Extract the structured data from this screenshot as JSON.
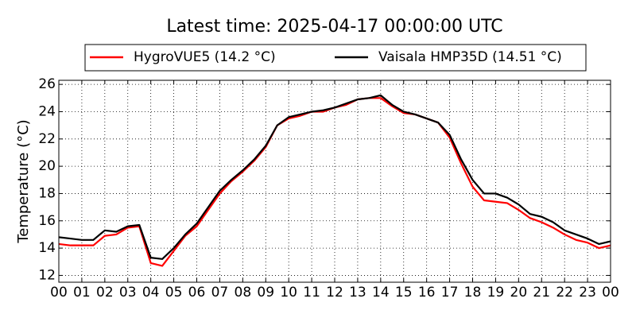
{
  "chart_data": {
    "type": "line",
    "title": "Latest time: 2025-04-17 00:00:00 UTC",
    "y_label": "Temperature (°C)",
    "x": [
      0,
      0.5,
      1,
      1.5,
      2,
      2.5,
      3,
      3.5,
      4,
      4.5,
      5,
      5.5,
      6,
      6.5,
      7,
      7.5,
      8,
      8.5,
      9,
      9.5,
      10,
      10.5,
      11,
      11.5,
      12,
      12.5,
      13,
      13.5,
      14,
      14.5,
      15,
      15.5,
      16,
      16.5,
      17,
      17.5,
      18,
      18.5,
      19,
      19.5,
      20,
      20.5,
      21,
      21.5,
      22,
      22.5,
      23,
      23.5,
      24
    ],
    "series": [
      {
        "name": "HygroVUE5 (14.2 °C)",
        "color": "#ff0000",
        "values": [
          14.3,
          14.2,
          14.2,
          14.2,
          14.9,
          15.0,
          15.5,
          15.6,
          12.9,
          12.7,
          13.8,
          14.9,
          15.6,
          16.8,
          18.0,
          18.9,
          19.6,
          20.4,
          21.4,
          23.0,
          23.5,
          23.7,
          24.0,
          24.0,
          24.3,
          24.5,
          24.9,
          25.0,
          25.0,
          24.4,
          23.9,
          23.8,
          23.5,
          23.2,
          22.1,
          20.2,
          18.5,
          17.5,
          17.4,
          17.3,
          16.8,
          16.2,
          15.9,
          15.5,
          15.0,
          14.6,
          14.4,
          14.0,
          14.2
        ]
      },
      {
        "name": "Vaisala HMP35D (14.51 °C)",
        "color": "#000000",
        "values": [
          14.8,
          14.7,
          14.6,
          14.6,
          15.3,
          15.2,
          15.6,
          15.7,
          13.3,
          13.2,
          14.0,
          15.0,
          15.8,
          17.0,
          18.2,
          19.0,
          19.7,
          20.5,
          21.5,
          23.0,
          23.6,
          23.8,
          24.0,
          24.1,
          24.3,
          24.6,
          24.9,
          25.0,
          25.2,
          24.5,
          24.0,
          23.8,
          23.5,
          23.2,
          22.3,
          20.5,
          19.0,
          18.0,
          18.0,
          17.7,
          17.2,
          16.5,
          16.3,
          15.9,
          15.3,
          15.0,
          14.7,
          14.3,
          14.5
        ]
      }
    ],
    "xlim": [
      0,
      24
    ],
    "xticks": [
      {
        "value": 0,
        "label": "00"
      },
      {
        "value": 1,
        "label": "01"
      },
      {
        "value": 2,
        "label": "02"
      },
      {
        "value": 3,
        "label": "03"
      },
      {
        "value": 4,
        "label": "04"
      },
      {
        "value": 5,
        "label": "05"
      },
      {
        "value": 6,
        "label": "06"
      },
      {
        "value": 7,
        "label": "07"
      },
      {
        "value": 8,
        "label": "08"
      },
      {
        "value": 9,
        "label": "09"
      },
      {
        "value": 10,
        "label": "10"
      },
      {
        "value": 11,
        "label": "11"
      },
      {
        "value": 12,
        "label": "12"
      },
      {
        "value": 13,
        "label": "13"
      },
      {
        "value": 14,
        "label": "14"
      },
      {
        "value": 15,
        "label": "15"
      },
      {
        "value": 16,
        "label": "16"
      },
      {
        "value": 17,
        "label": "17"
      },
      {
        "value": 18,
        "label": "18"
      },
      {
        "value": 19,
        "label": "19"
      },
      {
        "value": 20,
        "label": "20"
      },
      {
        "value": 21,
        "label": "21"
      },
      {
        "value": 22,
        "label": "22"
      },
      {
        "value": 23,
        "label": "23"
      },
      {
        "value": 24,
        "label": "00"
      }
    ],
    "ylim": [
      11.5,
      26.3
    ],
    "yticks": [
      12,
      14,
      16,
      18,
      20,
      22,
      24,
      26
    ],
    "grid": true,
    "legend": "top"
  }
}
